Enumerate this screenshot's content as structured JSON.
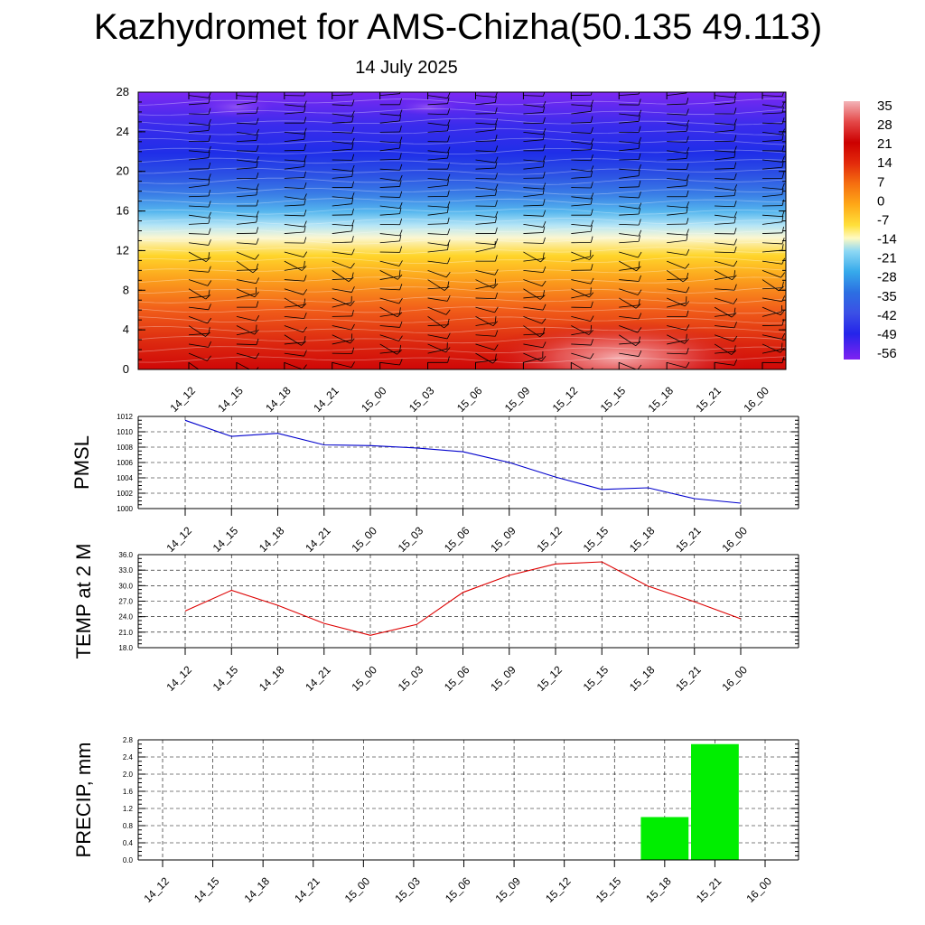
{
  "header": {
    "title": "Kazhydromet for AMS-Chizha(50.135 49.113)",
    "date": "14 July 2025"
  },
  "chart_data": [
    {
      "type": "heatmap",
      "title": "",
      "xlabel": "",
      "ylabel": "",
      "x": [
        "14_12",
        "14_15",
        "14_18",
        "14_21",
        "15_00",
        "15_03",
        "15_06",
        "15_09",
        "15_12",
        "15_15",
        "15_18",
        "15_21",
        "16_00"
      ],
      "yticks": [
        0,
        4,
        8,
        12,
        16,
        20,
        24,
        28
      ],
      "ylim": [
        0,
        28
      ],
      "colorbar_labels": [
        "35",
        "28",
        "21",
        "14",
        "7",
        "0",
        "-7",
        "-14",
        "-21",
        "-28",
        "-35",
        "-42",
        "-49",
        "-56"
      ],
      "colorbar_colors": [
        "#f3b4b8",
        "#e44848",
        "#cc0000",
        "#e32a0b",
        "#f56f10",
        "#fea817",
        "#ffe03a",
        "#fffac2",
        "#8ed8f4",
        "#36aaeb",
        "#2c6fe2",
        "#3b50e6",
        "#2424ea",
        "#7f22f1"
      ],
      "band_colors": [
        "#cf0707",
        "#db2410",
        "#ee5314",
        "#f88718",
        "#fcb51f",
        "#ffdc2a",
        "#f8f8d8",
        "#aee3f5",
        "#58b9ee",
        "#3a86e6",
        "#2f5de4",
        "#2a34e5",
        "#2330ec",
        "#4d2af0",
        "#7a28f2"
      ],
      "note_hot_core_center": [
        "15_15",
        1.2
      ]
    },
    {
      "type": "line",
      "ylabel": "PMSL",
      "x": [
        "14_12",
        "14_15",
        "14_18",
        "14_21",
        "15_00",
        "15_03",
        "15_06",
        "15_09",
        "15_12",
        "15_15",
        "15_18",
        "15_21",
        "16_00"
      ],
      "values": [
        1011.5,
        1009.4,
        1009.8,
        1008.3,
        1008.2,
        1007.9,
        1007.4,
        1006.0,
        1004.1,
        1002.5,
        1002.7,
        1001.3,
        1000.7
      ],
      "ylim": [
        1000,
        1012
      ],
      "yticks": [
        "1000",
        "1002",
        "1004",
        "1006",
        "1008",
        "1010",
        "1012"
      ],
      "color": "#0000cc",
      "grid": true
    },
    {
      "type": "line",
      "ylabel": "TEMP at 2 M",
      "x": [
        "14_12",
        "14_15",
        "14_18",
        "14_21",
        "15_00",
        "15_03",
        "15_06",
        "15_09",
        "15_12",
        "15_15",
        "15_18",
        "15_21",
        "16_00"
      ],
      "values": [
        25.1,
        29.1,
        26.2,
        22.7,
        20.4,
        22.5,
        28.7,
        32.0,
        34.2,
        34.6,
        29.9,
        26.9,
        23.6
      ],
      "ylim": [
        18,
        36
      ],
      "yticks": [
        "18.0",
        "21.0",
        "24.0",
        "27.0",
        "30.0",
        "33.0",
        "36.0"
      ],
      "color": "#dd0000",
      "grid": true
    },
    {
      "type": "bar",
      "ylabel": "PRECIP, mm",
      "categories": [
        "14_12",
        "14_15",
        "14_18",
        "14_21",
        "15_00",
        "15_03",
        "15_06",
        "15_09",
        "15_12",
        "15_15",
        "15_18",
        "15_21",
        "16_00"
      ],
      "values": [
        0,
        0,
        0,
        0,
        0,
        0,
        0,
        0,
        0,
        0,
        1.0,
        2.7,
        0
      ],
      "ylim": [
        0,
        2.8
      ],
      "yticks": [
        "0.0",
        "0.4",
        "0.8",
        "1.2",
        "1.6",
        "2.0",
        "2.4",
        "2.8"
      ],
      "color": "#00ee00",
      "grid": true
    }
  ]
}
